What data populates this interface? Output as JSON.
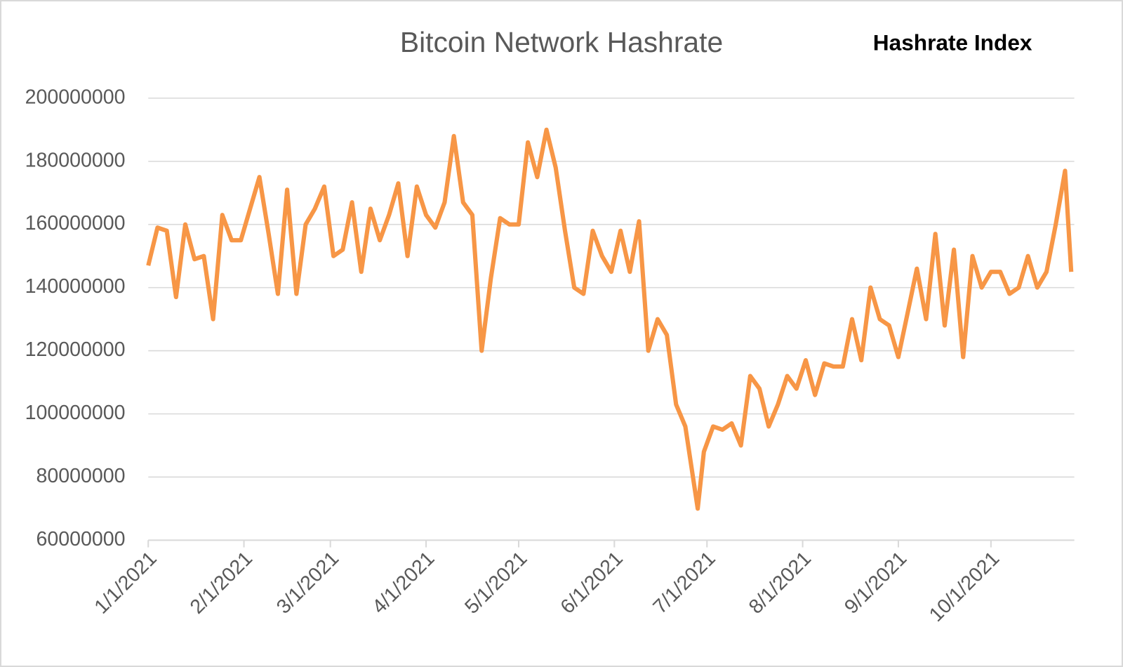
{
  "chart_data": {
    "type": "line",
    "title": "Bitcoin Network Hashrate",
    "watermark": "Hashrate Index",
    "x": [
      "1/1/2021",
      "1/4/2021",
      "1/7/2021",
      "1/10/2021",
      "1/13/2021",
      "1/16/2021",
      "1/19/2021",
      "1/22/2021",
      "1/25/2021",
      "1/28/2021",
      "1/31/2021",
      "2/3/2021",
      "2/6/2021",
      "2/9/2021",
      "2/12/2021",
      "2/15/2021",
      "2/18/2021",
      "2/21/2021",
      "2/24/2021",
      "2/27/2021",
      "3/2/2021",
      "3/5/2021",
      "3/8/2021",
      "3/11/2021",
      "3/14/2021",
      "3/17/2021",
      "3/20/2021",
      "3/23/2021",
      "3/26/2021",
      "3/29/2021",
      "4/1/2021",
      "4/4/2021",
      "4/7/2021",
      "4/10/2021",
      "4/13/2021",
      "4/16/2021",
      "4/19/2021",
      "4/22/2021",
      "4/25/2021",
      "4/28/2021",
      "5/1/2021",
      "5/4/2021",
      "5/7/2021",
      "5/10/2021",
      "5/13/2021",
      "5/16/2021",
      "5/19/2021",
      "5/22/2021",
      "5/25/2021",
      "5/28/2021",
      "5/31/2021",
      "6/3/2021",
      "6/6/2021",
      "6/9/2021",
      "6/12/2021",
      "6/15/2021",
      "6/18/2021",
      "6/21/2021",
      "6/24/2021",
      "6/28/2021",
      "6/30/2021",
      "7/3/2021",
      "7/6/2021",
      "7/9/2021",
      "7/12/2021",
      "7/15/2021",
      "7/18/2021",
      "7/21/2021",
      "7/24/2021",
      "7/27/2021",
      "7/30/2021",
      "8/2/2021",
      "8/5/2021",
      "8/8/2021",
      "8/11/2021",
      "8/14/2021",
      "8/17/2021",
      "8/20/2021",
      "8/23/2021",
      "8/26/2021",
      "8/29/2021",
      "9/1/2021",
      "9/4/2021",
      "9/7/2021",
      "9/10/2021",
      "9/13/2021",
      "9/16/2021",
      "9/19/2021",
      "9/22/2021",
      "9/25/2021",
      "9/28/2021",
      "10/1/2021",
      "10/4/2021",
      "10/7/2021",
      "10/10/2021",
      "10/13/2021",
      "10/16/2021",
      "10/19/2021",
      "10/22/2021",
      "10/25/2021",
      "10/27/2021"
    ],
    "series": [
      {
        "name": "Hashrate",
        "color": "#f79646",
        "values": [
          147000000,
          159000000,
          158000000,
          137000000,
          160000000,
          149000000,
          150000000,
          130000000,
          163000000,
          155000000,
          155000000,
          165000000,
          175000000,
          157000000,
          138000000,
          171000000,
          138000000,
          160000000,
          165000000,
          172000000,
          150000000,
          152000000,
          167000000,
          145000000,
          165000000,
          155000000,
          163000000,
          173000000,
          150000000,
          172000000,
          163000000,
          159000000,
          167000000,
          188000000,
          167000000,
          163000000,
          120000000,
          143000000,
          162000000,
          160000000,
          160000000,
          186000000,
          175000000,
          190000000,
          178000000,
          158000000,
          140000000,
          138000000,
          158000000,
          150000000,
          145000000,
          158000000,
          145000000,
          161000000,
          120000000,
          130000000,
          125000000,
          103000000,
          96000000,
          70000000,
          88000000,
          96000000,
          95000000,
          97000000,
          90000000,
          112000000,
          108000000,
          96000000,
          103000000,
          112000000,
          108000000,
          117000000,
          106000000,
          116000000,
          115000000,
          115000000,
          130000000,
          117000000,
          140000000,
          130000000,
          128000000,
          118000000,
          132000000,
          146000000,
          130000000,
          157000000,
          128000000,
          152000000,
          118000000,
          150000000,
          140000000,
          145000000,
          145000000,
          138000000,
          140000000,
          150000000,
          140000000,
          145000000,
          160000000,
          177000000,
          145000000
        ]
      }
    ],
    "xlim": [
      "1/1/2021",
      "10/28/2021"
    ],
    "xticks": [
      "1/1/2021",
      "2/1/2021",
      "3/1/2021",
      "4/1/2021",
      "5/1/2021",
      "6/1/2021",
      "7/1/2021",
      "8/1/2021",
      "9/1/2021",
      "10/1/2021"
    ],
    "ylim": [
      60000000,
      200000000
    ],
    "yticks": [
      60000000,
      80000000,
      100000000,
      120000000,
      140000000,
      160000000,
      180000000,
      200000000
    ],
    "grid": true
  }
}
